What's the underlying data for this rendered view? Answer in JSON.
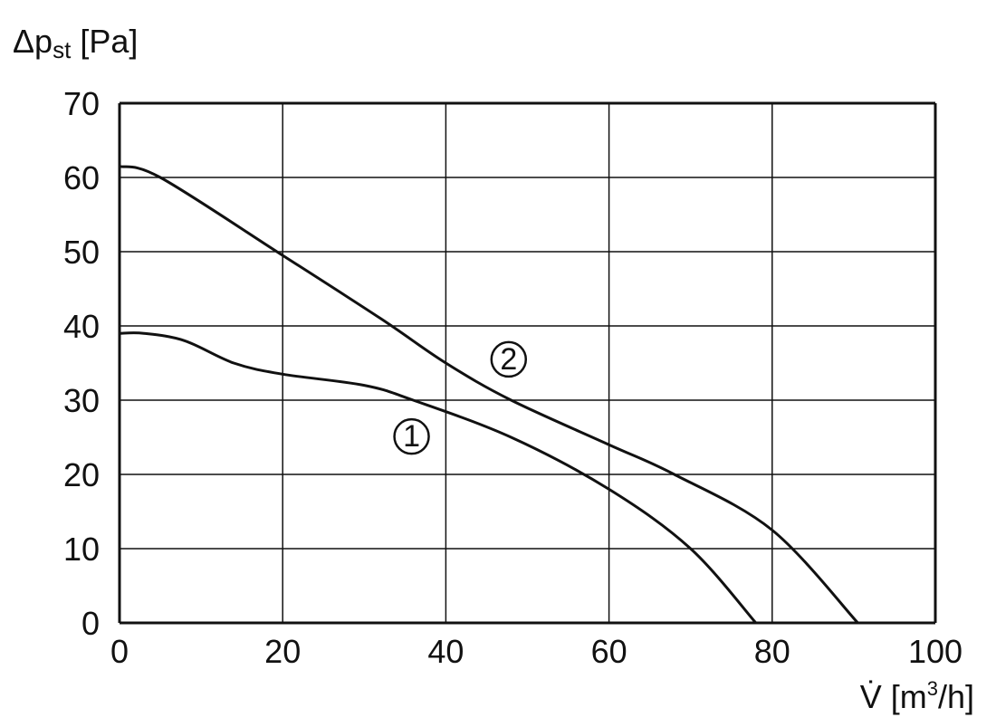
{
  "chart_data": {
    "type": "line",
    "ylabel": {
      "main": "Δp",
      "sub": "st",
      "unit": " [Pa]"
    },
    "xlabel": {
      "main": "V̇",
      "unit": " [m",
      "sup": "3",
      "unit2": "/h]"
    },
    "xlim": [
      0,
      100
    ],
    "ylim": [
      0,
      70
    ],
    "xticks": [
      0,
      20,
      40,
      60,
      80,
      100
    ],
    "yticks": [
      0,
      10,
      20,
      30,
      40,
      50,
      60,
      70
    ],
    "grid": true,
    "line_color": "#111111",
    "series": [
      {
        "name": "①",
        "label_pos": {
          "x": 35.8,
          "y": 25.1
        },
        "x": [
          0,
          3,
          8,
          14,
          20,
          30,
          36,
          48,
          60,
          70,
          78
        ],
        "y": [
          39,
          39,
          38,
          35,
          33.5,
          32,
          30,
          25,
          18,
          10,
          0
        ]
      },
      {
        "name": "②",
        "label_pos": {
          "x": 47.7,
          "y": 35.5
        },
        "x": [
          0,
          5,
          20,
          32,
          40,
          48,
          60,
          68,
          80,
          90.5
        ],
        "y": [
          61.5,
          60,
          49.5,
          41,
          35,
          30,
          24,
          20,
          12.5,
          0
        ]
      }
    ]
  }
}
